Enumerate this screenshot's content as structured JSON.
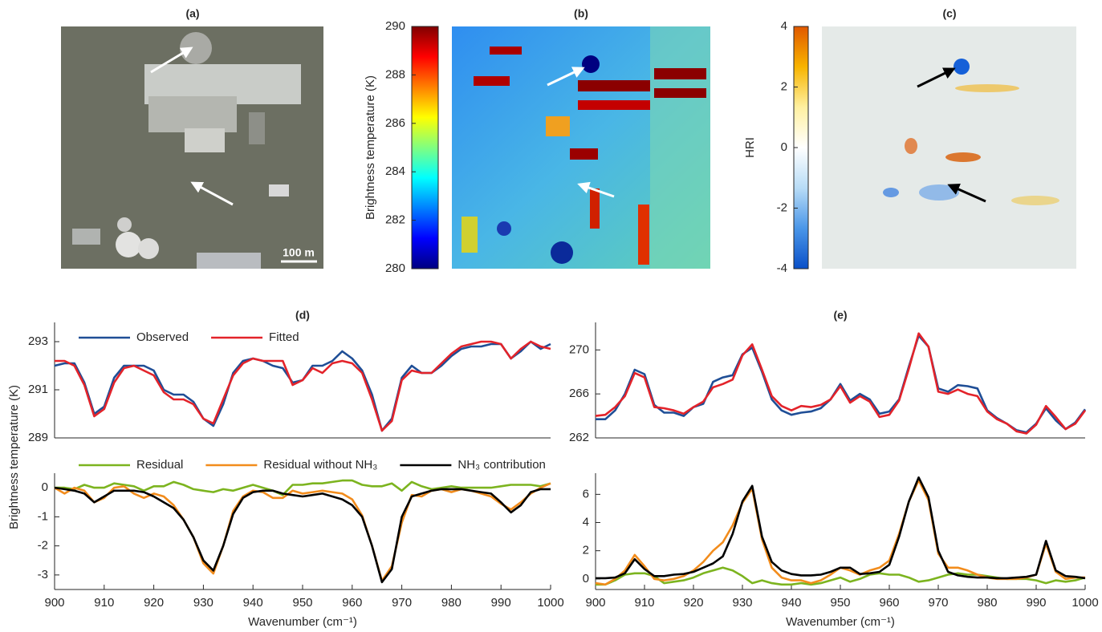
{
  "chart_data": [
    {
      "type": "image",
      "title": "(a)",
      "annotation": "100 m"
    },
    {
      "type": "colorbar",
      "title": "(b)",
      "ylabel": "Brightness temperature (K)",
      "colormap": "jet",
      "ylim": [
        280,
        290
      ],
      "yticks": [
        280,
        282,
        284,
        286,
        288,
        290
      ]
    },
    {
      "type": "colorbar",
      "title": "(c)",
      "ylabel": "HRI",
      "colormap": "blue-white-orange",
      "ylim": [
        -4,
        4
      ],
      "yticks": [
        -4,
        -2,
        0,
        2,
        4
      ]
    },
    {
      "type": "line",
      "title": "(d)",
      "legend": "upper left",
      "x": [
        900,
        902,
        904,
        906,
        908,
        910,
        912,
        914,
        916,
        918,
        920,
        922,
        924,
        926,
        928,
        930,
        932,
        934,
        936,
        938,
        940,
        942,
        944,
        946,
        948,
        950,
        952,
        954,
        956,
        958,
        960,
        962,
        964,
        966,
        968,
        970,
        972,
        974,
        976,
        978,
        980,
        982,
        984,
        986,
        988,
        990,
        992,
        994,
        996,
        998,
        1000
      ],
      "xlim": [
        900,
        1000
      ],
      "ylim": [
        289,
        293.8
      ],
      "yticks": [
        289,
        291,
        293
      ],
      "series": [
        {
          "name": "Observed",
          "color": "#1f4e96",
          "values": [
            292.0,
            292.1,
            292.1,
            291.3,
            290.0,
            290.3,
            291.5,
            292.0,
            292.0,
            292.0,
            291.8,
            291.0,
            290.8,
            290.8,
            290.5,
            289.8,
            289.5,
            290.4,
            291.7,
            292.2,
            292.3,
            292.2,
            292.0,
            291.9,
            291.3,
            291.4,
            292.0,
            292.0,
            292.2,
            292.6,
            292.3,
            291.8,
            290.8,
            289.3,
            289.8,
            291.5,
            292.0,
            291.7,
            291.7,
            292.0,
            292.4,
            292.7,
            292.8,
            292.8,
            292.9,
            292.9,
            292.3,
            292.6,
            293.0,
            292.7,
            292.9
          ]
        },
        {
          "name": "Fitted",
          "color": "#e3232a",
          "values": [
            292.2,
            292.2,
            292.0,
            291.2,
            289.9,
            290.2,
            291.3,
            291.9,
            292.0,
            291.8,
            291.6,
            290.9,
            290.6,
            290.6,
            290.4,
            289.8,
            289.6,
            290.6,
            291.6,
            292.1,
            292.3,
            292.2,
            292.2,
            292.2,
            291.2,
            291.4,
            291.9,
            291.7,
            292.1,
            292.2,
            292.1,
            291.7,
            290.6,
            289.3,
            289.7,
            291.4,
            291.8,
            291.7,
            291.7,
            292.1,
            292.5,
            292.8,
            292.9,
            293.0,
            293.0,
            292.9,
            292.3,
            292.7,
            293.0,
            292.8,
            292.7
          ]
        }
      ]
    },
    {
      "type": "line",
      "legend": "above",
      "ylabel": "Brightness temperature (K)",
      "xlabel": "Wavenumber (cm⁻¹)",
      "x": [
        900,
        902,
        904,
        906,
        908,
        910,
        912,
        914,
        916,
        918,
        920,
        922,
        924,
        926,
        928,
        930,
        932,
        934,
        936,
        938,
        940,
        942,
        944,
        946,
        948,
        950,
        952,
        954,
        956,
        958,
        960,
        962,
        964,
        966,
        968,
        970,
        972,
        974,
        976,
        978,
        980,
        982,
        984,
        986,
        988,
        990,
        992,
        994,
        996,
        998,
        1000
      ],
      "xlim": [
        900,
        1000
      ],
      "xticks": [
        900,
        910,
        920,
        930,
        940,
        950,
        960,
        970,
        980,
        990,
        1000
      ],
      "ylim": [
        -3.5,
        0.5
      ],
      "yticks": [
        -3,
        -2,
        -1,
        0
      ],
      "series": [
        {
          "name": "Residual",
          "color": "#7cb41f",
          "values": [
            0,
            0,
            -0.05,
            0.1,
            0,
            0,
            0.15,
            0.1,
            0.05,
            -0.1,
            0.05,
            0.05,
            0.2,
            0.1,
            -0.05,
            -0.1,
            -0.15,
            -0.05,
            -0.1,
            0,
            0.1,
            0,
            -0.1,
            -0.25,
            0.1,
            0.1,
            0.15,
            0.15,
            0.2,
            0.25,
            0.25,
            0.1,
            0.05,
            0.05,
            0.15,
            -0.1,
            0.2,
            0.05,
            -0.05,
            0,
            0.05,
            0,
            0,
            0,
            0,
            0.05,
            0.1,
            0.1,
            0.1,
            0.05,
            0.15
          ]
        },
        {
          "name": "Residual without NH₃",
          "color": "#f28c1c",
          "values": [
            0,
            -0.2,
            0,
            -0.1,
            -0.5,
            -0.35,
            0,
            0.05,
            -0.2,
            -0.35,
            -0.2,
            -0.3,
            -0.6,
            -1.1,
            -1.7,
            -2.6,
            -2.95,
            -2.0,
            -0.8,
            -0.3,
            -0.1,
            -0.15,
            -0.35,
            -0.35,
            -0.1,
            -0.2,
            -0.15,
            -0.1,
            -0.15,
            -0.2,
            -0.4,
            -0.95,
            -2.0,
            -3.2,
            -2.7,
            -1.2,
            -0.25,
            -0.3,
            -0.1,
            -0.05,
            -0.15,
            -0.05,
            -0.1,
            -0.2,
            -0.3,
            -0.55,
            -0.75,
            -0.5,
            -0.2,
            0,
            0.15
          ]
        },
        {
          "name": "NH₃ contribution",
          "color": "#000000",
          "values": [
            0,
            -0.05,
            -0.1,
            -0.2,
            -0.5,
            -0.3,
            -0.1,
            -0.1,
            -0.1,
            -0.15,
            -0.3,
            -0.5,
            -0.7,
            -1.1,
            -1.7,
            -2.5,
            -2.85,
            -2.0,
            -0.9,
            -0.35,
            -0.15,
            -0.1,
            -0.1,
            -0.2,
            -0.25,
            -0.3,
            -0.25,
            -0.2,
            -0.3,
            -0.4,
            -0.6,
            -1.0,
            -2.0,
            -3.25,
            -2.8,
            -1.0,
            -0.3,
            -0.2,
            -0.1,
            -0.05,
            -0.05,
            -0.05,
            -0.1,
            -0.15,
            -0.2,
            -0.5,
            -0.85,
            -0.6,
            -0.15,
            -0.05,
            -0.05
          ]
        }
      ]
    },
    {
      "type": "line",
      "title": "(e)",
      "x": [
        900,
        902,
        904,
        906,
        908,
        910,
        912,
        914,
        916,
        918,
        920,
        922,
        924,
        926,
        928,
        930,
        932,
        934,
        936,
        938,
        940,
        942,
        944,
        946,
        948,
        950,
        952,
        954,
        956,
        958,
        960,
        962,
        964,
        966,
        968,
        970,
        972,
        974,
        976,
        978,
        980,
        982,
        984,
        986,
        988,
        990,
        992,
        994,
        996,
        998,
        1000
      ],
      "xlim": [
        900,
        1000
      ],
      "ylim": [
        262,
        272.5
      ],
      "yticks": [
        262,
        266,
        270
      ],
      "series": [
        {
          "color": "#1f4e96",
          "values": [
            263.7,
            263.7,
            264.5,
            266.0,
            268.2,
            267.8,
            265.0,
            264.3,
            264.3,
            264.0,
            264.8,
            265.1,
            267.1,
            267.5,
            267.7,
            269.6,
            270.2,
            268.0,
            265.5,
            264.5,
            264.1,
            264.3,
            264.4,
            264.7,
            265.5,
            266.9,
            265.4,
            266.0,
            265.5,
            264.2,
            264.4,
            265.5,
            268.5,
            271.3,
            270.3,
            266.5,
            266.2,
            266.8,
            266.7,
            266.5,
            264.5,
            263.8,
            263.3,
            262.7,
            262.5,
            263.3,
            264.7,
            263.6,
            262.8,
            263.4,
            264.6
          ]
        },
        {
          "color": "#e3232a",
          "values": [
            264.0,
            264.1,
            264.8,
            265.8,
            267.9,
            267.5,
            264.8,
            264.7,
            264.5,
            264.2,
            264.8,
            265.3,
            266.6,
            266.9,
            267.3,
            269.5,
            270.5,
            268.2,
            265.8,
            264.9,
            264.5,
            264.9,
            264.8,
            265.0,
            265.5,
            266.7,
            265.2,
            265.8,
            265.3,
            263.9,
            264.1,
            265.4,
            268.3,
            271.5,
            270.3,
            266.2,
            266.0,
            266.4,
            266.0,
            265.8,
            264.4,
            263.7,
            263.3,
            262.6,
            262.4,
            263.2,
            264.9,
            263.9,
            262.8,
            263.3,
            264.5
          ]
        }
      ]
    },
    {
      "type": "line",
      "xlabel": "Wavenumber (cm⁻¹)",
      "x": [
        900,
        902,
        904,
        906,
        908,
        910,
        912,
        914,
        916,
        918,
        920,
        922,
        924,
        926,
        928,
        930,
        932,
        934,
        936,
        938,
        940,
        942,
        944,
        946,
        948,
        950,
        952,
        954,
        956,
        958,
        960,
        962,
        964,
        966,
        968,
        970,
        972,
        974,
        976,
        978,
        980,
        982,
        984,
        986,
        988,
        990,
        992,
        994,
        996,
        998,
        1000
      ],
      "xlim": [
        900,
        1000
      ],
      "xticks": [
        900,
        910,
        920,
        930,
        940,
        950,
        960,
        970,
        980,
        990,
        1000
      ],
      "ylim": [
        -0.75,
        7.5
      ],
      "yticks": [
        0,
        2,
        4,
        6
      ],
      "series": [
        {
          "color": "#7cb41f",
          "values": [
            -0.4,
            -0.4,
            -0.1,
            0.3,
            0.4,
            0.4,
            0.2,
            -0.3,
            -0.2,
            -0.1,
            0.1,
            0.4,
            0.6,
            0.8,
            0.6,
            0.2,
            -0.3,
            -0.1,
            -0.3,
            -0.4,
            -0.4,
            -0.3,
            -0.4,
            -0.3,
            -0.1,
            0.1,
            -0.2,
            0.0,
            0.3,
            0.4,
            0.3,
            0.3,
            0.1,
            -0.2,
            -0.1,
            0.1,
            0.3,
            0.4,
            0.3,
            0.3,
            0.2,
            0.1,
            0.0,
            0.0,
            0.0,
            -0.1,
            -0.3,
            -0.1,
            -0.2,
            -0.1,
            0.1
          ]
        },
        {
          "color": "#f28c1c",
          "values": [
            -0.3,
            -0.4,
            0.0,
            0.6,
            1.7,
            0.9,
            0.0,
            -0.1,
            0.0,
            0.2,
            0.6,
            1.2,
            2.0,
            2.6,
            3.8,
            5.4,
            6.4,
            2.8,
            0.8,
            0.1,
            -0.1,
            -0.1,
            -0.3,
            -0.1,
            0.3,
            0.8,
            0.6,
            0.3,
            0.6,
            0.8,
            1.3,
            3.2,
            5.5,
            7.0,
            5.6,
            1.8,
            0.8,
            0.8,
            0.6,
            0.3,
            0.1,
            0.0,
            0.0,
            0.0,
            0.1,
            0.3,
            2.5,
            0.5,
            0.0,
            0.1,
            0.1
          ]
        },
        {
          "color": "#000000",
          "values": [
            0.05,
            0.05,
            0.1,
            0.4,
            1.4,
            0.7,
            0.2,
            0.2,
            0.3,
            0.35,
            0.5,
            0.8,
            1.1,
            1.6,
            3.2,
            5.5,
            6.6,
            3.0,
            1.2,
            0.6,
            0.35,
            0.25,
            0.25,
            0.3,
            0.5,
            0.8,
            0.8,
            0.35,
            0.4,
            0.5,
            1.0,
            3.0,
            5.5,
            7.2,
            5.8,
            2.0,
            0.5,
            0.25,
            0.15,
            0.1,
            0.1,
            0.05,
            0.05,
            0.1,
            0.15,
            0.3,
            2.7,
            0.6,
            0.2,
            0.15,
            0.05
          ]
        }
      ]
    }
  ]
}
